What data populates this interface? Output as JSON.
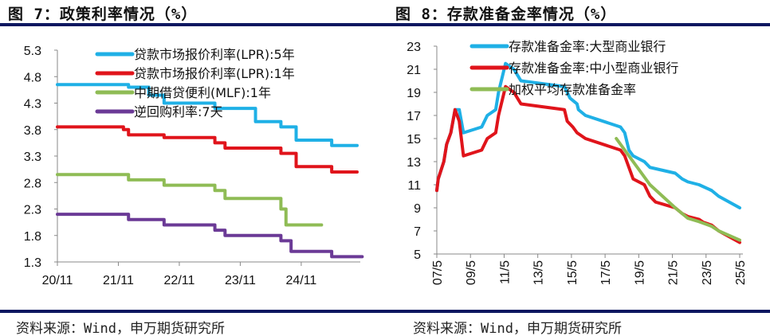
{
  "titles": {
    "left": "图 7：政策利率情况（%）",
    "right": "图 8：存款准备金率情况（%）"
  },
  "sources": {
    "left": "资料来源：Wind，申万期货研究所",
    "right": "资料来源：Wind，申万期货研究所"
  },
  "colors": {
    "rule": "#0b1760"
  },
  "chart_data": [
    {
      "type": "line",
      "step": true,
      "xlim": [
        "2020-11",
        "2025-10"
      ],
      "ylim": [
        1.3,
        5.3
      ],
      "yticks": [
        1.3,
        1.8,
        2.3,
        2.8,
        3.3,
        3.8,
        4.3,
        4.8,
        5.3
      ],
      "xticks": [
        {
          "x": "2020-11",
          "label": "20/11"
        },
        {
          "x": "2021-11",
          "label": "21/11"
        },
        {
          "x": "2022-11",
          "label": "22/11"
        },
        {
          "x": "2023-11",
          "label": "23/11"
        },
        {
          "x": "2024-11",
          "label": "24/11"
        }
      ],
      "grid": false,
      "legend": "top",
      "series": [
        {
          "name": "贷款市场报价利率(LPR):5年",
          "color": "#1fb0e6",
          "points": [
            [
              "2020-11",
              4.65
            ],
            [
              "2022-01",
              4.6
            ],
            [
              "2022-05",
              4.45
            ],
            [
              "2022-08",
              4.3
            ],
            [
              "2023-06",
              4.2
            ],
            [
              "2024-02",
              3.95
            ],
            [
              "2024-07",
              3.85
            ],
            [
              "2024-10",
              3.6
            ],
            [
              "2025-05",
              3.5
            ],
            [
              "2025-10",
              3.5
            ]
          ]
        },
        {
          "name": "贷款市场报价利率(LPR):1年",
          "color": "#e0141b",
          "points": [
            [
              "2020-11",
              3.85
            ],
            [
              "2021-12",
              3.8
            ],
            [
              "2022-01",
              3.7
            ],
            [
              "2022-08",
              3.65
            ],
            [
              "2023-06",
              3.55
            ],
            [
              "2023-08",
              3.45
            ],
            [
              "2024-07",
              3.35
            ],
            [
              "2024-10",
              3.1
            ],
            [
              "2025-05",
              3.0
            ],
            [
              "2025-10",
              3.0
            ]
          ]
        },
        {
          "name": "中期借贷便利(MLF):1年",
          "color": "#8fbc55",
          "points": [
            [
              "2020-11",
              2.95
            ],
            [
              "2022-01",
              2.85
            ],
            [
              "2022-08",
              2.75
            ],
            [
              "2023-06",
              2.65
            ],
            [
              "2023-08",
              2.5
            ],
            [
              "2024-07",
              2.3
            ],
            [
              "2024-08",
              2.0
            ],
            [
              "2025-03",
              2.0
            ]
          ]
        },
        {
          "name": "逆回购利率:7天",
          "color": "#6b3a96",
          "points": [
            [
              "2020-11",
              2.2
            ],
            [
              "2022-01",
              2.1
            ],
            [
              "2022-08",
              2.0
            ],
            [
              "2023-06",
              1.9
            ],
            [
              "2023-08",
              1.8
            ],
            [
              "2024-07",
              1.7
            ],
            [
              "2024-09",
              1.5
            ],
            [
              "2025-05",
              1.4
            ],
            [
              "2025-11",
              1.4
            ]
          ]
        }
      ]
    },
    {
      "type": "line",
      "step": false,
      "xlim": [
        "2007-05",
        "2025-05"
      ],
      "ylim": [
        5,
        23
      ],
      "yticks": [
        5,
        7,
        9,
        11,
        13,
        15,
        17,
        19,
        21,
        23
      ],
      "xticks": [
        {
          "x": "2007-05",
          "label": "07/5"
        },
        {
          "x": "2009-05",
          "label": "09/5"
        },
        {
          "x": "2011-05",
          "label": "11/5"
        },
        {
          "x": "2013-05",
          "label": "13/5"
        },
        {
          "x": "2015-05",
          "label": "15/5"
        },
        {
          "x": "2017-05",
          "label": "17/5"
        },
        {
          "x": "2019-05",
          "label": "19/5"
        },
        {
          "x": "2021-05",
          "label": "21/5"
        },
        {
          "x": "2023-05",
          "label": "23/5"
        },
        {
          "x": "2025-05",
          "label": "25/5"
        }
      ],
      "grid": false,
      "legend": "top",
      "series": [
        {
          "name": "存款准备金率:大型商业银行",
          "color": "#1fb0e6",
          "points": [
            [
              "2007-05",
              10.5
            ],
            [
              "2007-06",
              11.5
            ],
            [
              "2007-10",
              13
            ],
            [
              "2007-12",
              14.5
            ],
            [
              "2008-03",
              15.5
            ],
            [
              "2008-06",
              17.5
            ],
            [
              "2008-09",
              17.5
            ],
            [
              "2008-12",
              15.5
            ],
            [
              "2010-01",
              16
            ],
            [
              "2010-05",
              17
            ],
            [
              "2010-11",
              17.5
            ],
            [
              "2011-01",
              19
            ],
            [
              "2011-06",
              21.5
            ],
            [
              "2011-12",
              21
            ],
            [
              "2012-05",
              20
            ],
            [
              "2014-12",
              19.5
            ],
            [
              "2015-04",
              18.5
            ],
            [
              "2015-09",
              18
            ],
            [
              "2015-10",
              17.5
            ],
            [
              "2016-03",
              17
            ],
            [
              "2018-04",
              16
            ],
            [
              "2018-07",
              15.5
            ],
            [
              "2018-10",
              14
            ],
            [
              "2019-01",
              13.5
            ],
            [
              "2019-09",
              13
            ],
            [
              "2020-01",
              12.5
            ],
            [
              "2021-07",
              12
            ],
            [
              "2021-12",
              11.5
            ],
            [
              "2022-04",
              11.25
            ],
            [
              "2022-12",
              11
            ],
            [
              "2023-09",
              10.5
            ],
            [
              "2024-02",
              10
            ],
            [
              "2025-05",
              9
            ]
          ]
        },
        {
          "name": "存款准备金率:中小型商业银行",
          "color": "#e0141b",
          "points": [
            [
              "2007-05",
              10.5
            ],
            [
              "2007-06",
              11.5
            ],
            [
              "2007-10",
              13
            ],
            [
              "2007-12",
              14.5
            ],
            [
              "2008-03",
              15.5
            ],
            [
              "2008-06",
              17.5
            ],
            [
              "2008-09",
              16.5
            ],
            [
              "2008-12",
              13.5
            ],
            [
              "2010-01",
              14
            ],
            [
              "2010-05",
              15
            ],
            [
              "2010-11",
              15.5
            ],
            [
              "2011-01",
              17
            ],
            [
              "2011-06",
              19.5
            ],
            [
              "2011-12",
              19
            ],
            [
              "2012-05",
              18
            ],
            [
              "2014-12",
              17.5
            ],
            [
              "2015-02",
              16.5
            ],
            [
              "2015-06",
              16
            ],
            [
              "2015-09",
              15.5
            ],
            [
              "2016-03",
              15
            ],
            [
              "2018-04",
              14
            ],
            [
              "2018-07",
              13.5
            ],
            [
              "2018-10",
              12.5
            ],
            [
              "2019-01",
              11.5
            ],
            [
              "2019-09",
              11
            ],
            [
              "2020-01",
              10
            ],
            [
              "2020-05",
              9.5
            ],
            [
              "2021-07",
              9
            ],
            [
              "2021-12",
              8.5
            ],
            [
              "2022-04",
              8.25
            ],
            [
              "2022-12",
              8
            ],
            [
              "2023-03",
              7.75
            ],
            [
              "2023-09",
              7.5
            ],
            [
              "2024-02",
              7
            ],
            [
              "2025-05",
              6
            ]
          ]
        },
        {
          "name": "加权平均存款准备金率",
          "color": "#8fbc55",
          "points": [
            [
              "2018-01",
              15
            ],
            [
              "2019-01",
              13
            ],
            [
              "2020-01",
              11
            ],
            [
              "2021-07",
              9
            ],
            [
              "2022-04",
              8.1
            ],
            [
              "2022-12",
              7.8
            ],
            [
              "2023-09",
              7.4
            ],
            [
              "2024-02",
              7
            ],
            [
              "2025-05",
              6.2
            ]
          ]
        }
      ]
    }
  ]
}
